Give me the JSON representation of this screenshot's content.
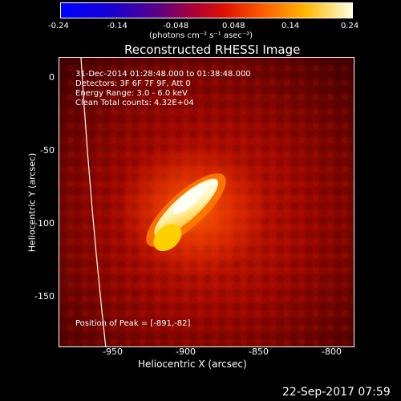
{
  "colorbar": {
    "ticks": [
      "-0.24",
      "-0.14",
      "-0.048",
      "0.048",
      "0.14",
      "0.24"
    ],
    "units": "(photons cm⁻² s⁻¹ asec⁻²)"
  },
  "title": "Reconstructed RHESSI Image",
  "annotations": {
    "time_range": "31-Dec-2014 01:28:48.000 to 01:38:48.000",
    "detectors": "Detectors: 3F 6F 7F 9F, Att 0",
    "energy": "Energy Range: 3.0 - 6.0 keV",
    "clean": "Clean     Total counts: 4.32E+04",
    "peak": "Position of Peak = [-891,-82]"
  },
  "axes": {
    "xlabel": "Heliocentric X (arcsec)",
    "ylabel": "Heliocentric Y (arcsec)",
    "xticks": [
      "-950",
      "-900",
      "-850",
      "-800"
    ],
    "yticks": [
      "0",
      "-50",
      "-100",
      "-150"
    ]
  },
  "footer": {
    "date": "22-Sep-2017 07:59"
  },
  "colors": {
    "background": "#000000",
    "foreground": "#ffffff"
  }
}
